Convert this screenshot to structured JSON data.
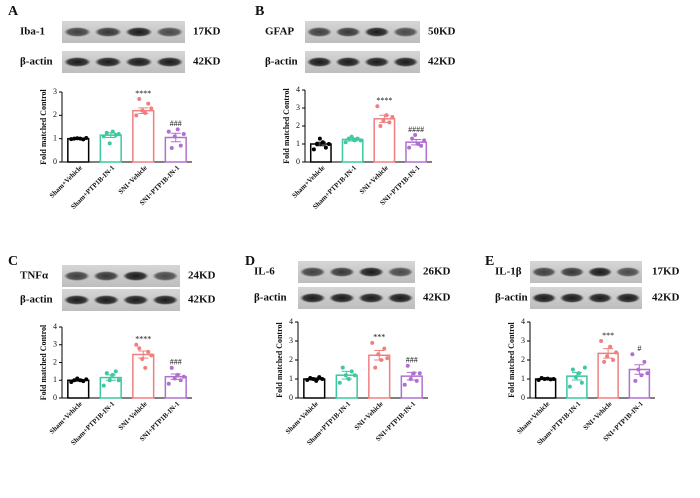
{
  "chart_data": [
    {
      "type": "bar",
      "panel_label": "A",
      "blots": [
        {
          "protein": "Iba-1",
          "size": "17KD"
        },
        {
          "protein": "β-actin",
          "size": "42KD"
        }
      ],
      "ylabel": "Fold matched Control",
      "categories": [
        "Sham+Vehicle",
        "Sham+PTP1B-IN-1",
        "SNI+Vehicle",
        "SNI+PTP1B-IN-1"
      ],
      "colors": [
        "#000000",
        "#3cc8a0",
        "#f08080",
        "#b070d0"
      ],
      "values": [
        1.0,
        1.15,
        2.2,
        1.05
      ],
      "errors": [
        0.02,
        0.1,
        0.12,
        0.18
      ],
      "points": [
        [
          0.98,
          1.0,
          1.02,
          1.0,
          0.97,
          1.03
        ],
        [
          1.1,
          1.25,
          0.8,
          1.3,
          1.15,
          1.2
        ],
        [
          2.0,
          2.7,
          2.2,
          2.1,
          2.5,
          2.3
        ],
        [
          1.3,
          0.6,
          1.1,
          1.4,
          0.7,
          1.2
        ]
      ],
      "annotations": [
        null,
        null,
        "****",
        "###"
      ],
      "ylim": [
        0,
        3
      ],
      "yticks": [
        0,
        1,
        2,
        3
      ]
    },
    {
      "type": "bar",
      "panel_label": "B",
      "blots": [
        {
          "protein": "GFAP",
          "size": "50KD"
        },
        {
          "protein": "β-actin",
          "size": "42KD"
        }
      ],
      "ylabel": "Fold matched Control",
      "categories": [
        "Sham+Vehicle",
        "Sham+PTP1B-IN-1",
        "SNI+Vehicle",
        "SNI+PTP1B-IN-1"
      ],
      "colors": [
        "#000000",
        "#3cc8a0",
        "#f08080",
        "#b070d0"
      ],
      "values": [
        1.0,
        1.25,
        2.4,
        1.1
      ],
      "errors": [
        0.1,
        0.08,
        0.2,
        0.15
      ],
      "points": [
        [
          0.7,
          1.0,
          1.3,
          1.1,
          0.8,
          1.0
        ],
        [
          1.1,
          1.3,
          1.4,
          1.2,
          1.3,
          1.2
        ],
        [
          3.1,
          2.0,
          2.3,
          2.6,
          2.2,
          2.5
        ],
        [
          0.8,
          1.3,
          1.5,
          1.0,
          0.9,
          1.2
        ]
      ],
      "annotations": [
        null,
        null,
        "****",
        "####"
      ],
      "ylim": [
        0,
        4
      ],
      "yticks": [
        0,
        1,
        2,
        3,
        4
      ]
    },
    {
      "type": "bar",
      "panel_label": "C",
      "blots": [
        {
          "protein": "TNFα",
          "size": "24KD"
        },
        {
          "protein": "β-actin",
          "size": "42KD"
        }
      ],
      "ylabel": "Fold matched Control",
      "categories": [
        "Sham+Vehicle",
        "Sham+PTP1B-IN-1",
        "SNI+Vehicle",
        "SNI+PTP1B-IN-1"
      ],
      "colors": [
        "#000000",
        "#3cc8a0",
        "#f08080",
        "#b070d0"
      ],
      "values": [
        1.0,
        1.15,
        2.45,
        1.2
      ],
      "errors": [
        0.05,
        0.15,
        0.2,
        0.15
      ],
      "points": [
        [
          0.9,
          1.0,
          1.1,
          1.0,
          0.95,
          1.05
        ],
        [
          0.7,
          1.4,
          1.0,
          1.3,
          1.5,
          1.0
        ],
        [
          3.0,
          2.8,
          2.2,
          1.7,
          2.6,
          2.4
        ],
        [
          0.8,
          1.7,
          1.1,
          1.3,
          1.0,
          1.2
        ]
      ],
      "annotations": [
        null,
        null,
        "****",
        "###"
      ],
      "ylim": [
        0,
        4
      ],
      "yticks": [
        0,
        1,
        2,
        3,
        4
      ]
    },
    {
      "type": "bar",
      "panel_label": "D",
      "blots": [
        {
          "protein": "IL-6",
          "size": "26KD"
        },
        {
          "protein": "β-actin",
          "size": "42KD"
        }
      ],
      "ylabel": "Fold matched Control",
      "categories": [
        "Sham+Vehicle",
        "Sham+PTP1B-IN-1",
        "SNI+Vehicle",
        "SNI+PTP1B-IN-1"
      ],
      "colors": [
        "#000000",
        "#3cc8a0",
        "#f08080",
        "#b070d0"
      ],
      "values": [
        1.0,
        1.2,
        2.25,
        1.15
      ],
      "errors": [
        0.05,
        0.2,
        0.25,
        0.2
      ],
      "points": [
        [
          0.95,
          1.05,
          1.0,
          0.9,
          1.1,
          1.0
        ],
        [
          0.8,
          1.6,
          1.2,
          1.0,
          1.4,
          1.2
        ],
        [
          2.9,
          1.6,
          2.3,
          2.0,
          2.6,
          2.1
        ],
        [
          0.7,
          1.7,
          1.0,
          1.3,
          0.9,
          1.3
        ]
      ],
      "annotations": [
        null,
        null,
        "***",
        "###"
      ],
      "ylim": [
        0,
        4
      ],
      "yticks": [
        0,
        1,
        2,
        3,
        4
      ]
    },
    {
      "type": "bar",
      "panel_label": "E",
      "blots": [
        {
          "protein": "IL-1β",
          "size": "17KD"
        },
        {
          "protein": "β-actin",
          "size": "42KD"
        }
      ],
      "ylabel": "Fold matched Control",
      "categories": [
        "Sham+Vehicle",
        "Sham+PTP1B-IN-1",
        "SNI+Vehicle",
        "SNI+PTP1B-IN-1"
      ],
      "colors": [
        "#000000",
        "#3cc8a0",
        "#f08080",
        "#b070d0"
      ],
      "values": [
        1.0,
        1.15,
        2.35,
        1.5
      ],
      "errors": [
        0.03,
        0.2,
        0.25,
        0.25
      ],
      "points": [
        [
          0.95,
          1.05,
          1.0,
          1.02,
          0.98,
          1.0
        ],
        [
          0.6,
          1.5,
          1.1,
          1.3,
          0.8,
          1.6
        ],
        [
          3.0,
          1.9,
          2.2,
          2.7,
          2.0,
          2.4
        ],
        [
          2.3,
          0.9,
          1.5,
          1.2,
          1.9,
          1.3
        ]
      ],
      "annotations": [
        null,
        null,
        "***",
        "#"
      ],
      "ylim": [
        0,
        4
      ],
      "yticks": [
        0,
        1,
        2,
        3,
        4
      ]
    }
  ]
}
